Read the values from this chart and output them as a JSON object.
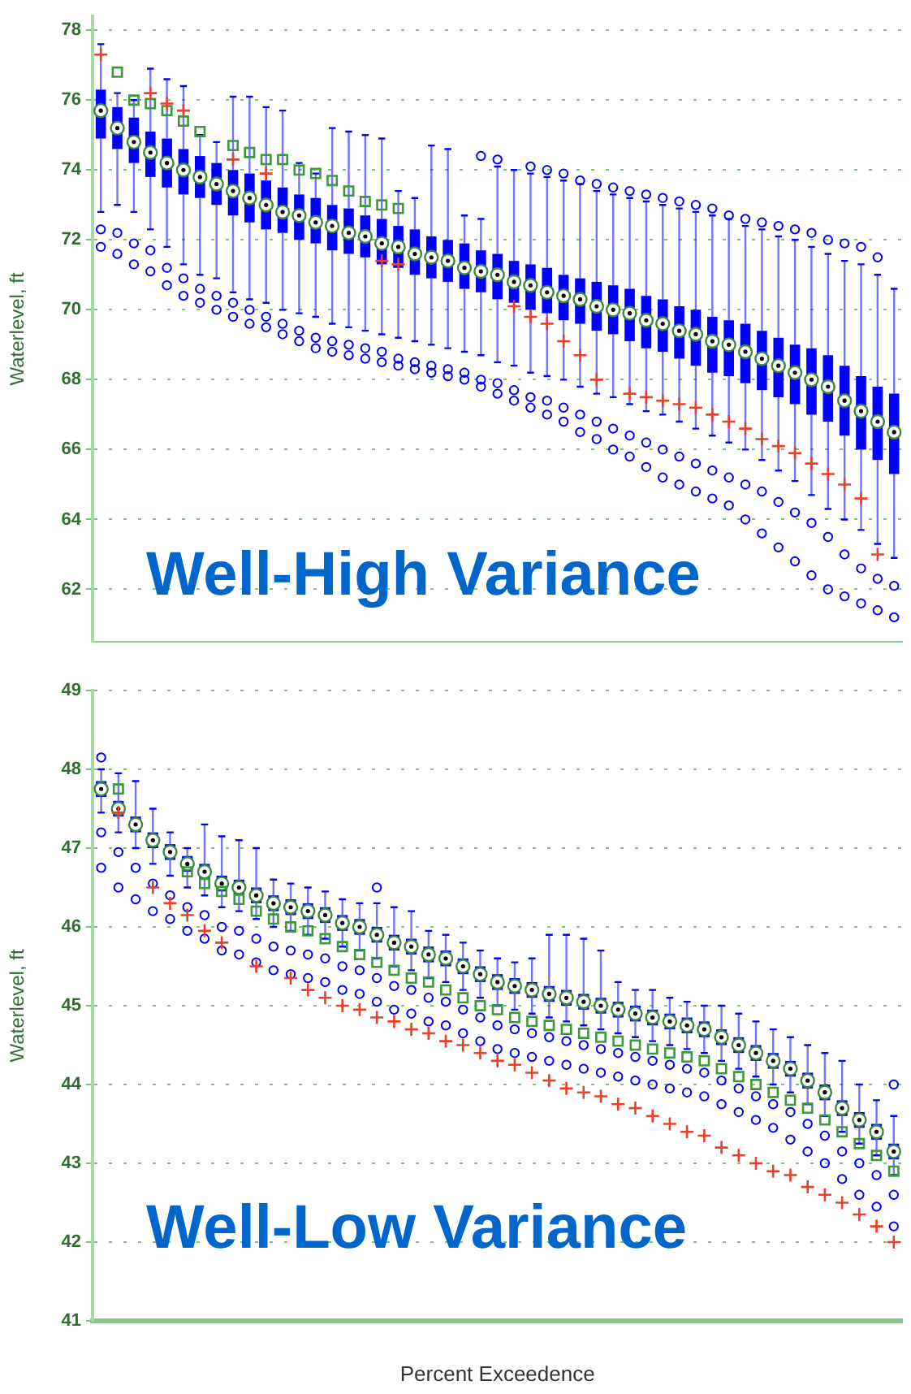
{
  "chart_data": [
    {
      "type": "box",
      "title": "Well-High Variance",
      "ylabel": "Waterlevel, ft",
      "ylim": [
        60.5,
        78.4
      ],
      "yticks": [
        62,
        64,
        66,
        68,
        70,
        72,
        74,
        76,
        78
      ],
      "grid": "y",
      "legend": false,
      "tick_labels": "y",
      "categories": [
        null,
        null,
        null,
        null,
        null,
        null,
        null,
        null,
        null,
        null,
        null,
        null,
        null,
        null,
        null,
        null,
        null,
        null,
        null,
        null,
        null,
        null,
        null,
        null,
        null,
        null,
        null,
        null,
        null,
        null,
        null,
        null,
        null,
        null,
        null,
        null,
        null,
        null,
        null,
        null,
        null,
        null,
        null,
        null,
        null,
        null,
        null,
        null,
        null
      ],
      "series": [
        {
          "type": "box",
          "color": "#0000ff",
          "boxes": [
            {
              "low": 72.8,
              "q1": 74.9,
              "median": 75.7,
              "q3": 76.3,
              "high": 77.6,
              "outliers": [
                72.3,
                71.8
              ]
            },
            {
              "low": 73.0,
              "q1": 74.6,
              "median": 75.2,
              "q3": 75.8,
              "high": 76.2,
              "outliers": [
                72.2,
                71.6
              ]
            },
            {
              "low": 72.8,
              "q1": 74.2,
              "median": 74.8,
              "q3": 75.5,
              "high": 76.0,
              "outliers": [
                71.9,
                71.3
              ]
            },
            {
              "low": 72.3,
              "q1": 73.8,
              "median": 74.5,
              "q3": 75.1,
              "high": 76.9,
              "outliers": [
                71.7,
                71.1
              ]
            },
            {
              "low": 71.8,
              "q1": 73.5,
              "median": 74.2,
              "q3": 74.9,
              "high": 76.6,
              "outliers": [
                71.2,
                70.7
              ]
            },
            {
              "low": 71.3,
              "q1": 73.3,
              "median": 74.0,
              "q3": 74.6,
              "high": 76.4,
              "outliers": [
                70.9,
                70.4
              ]
            },
            {
              "low": 71.0,
              "q1": 73.2,
              "median": 73.8,
              "q3": 74.4,
              "high": 75.0,
              "outliers": [
                70.6,
                70.2
              ]
            },
            {
              "low": 70.9,
              "q1": 73.0,
              "median": 73.6,
              "q3": 74.2,
              "high": 74.8,
              "outliers": [
                70.4,
                70.0
              ]
            },
            {
              "low": 70.5,
              "q1": 72.7,
              "median": 73.4,
              "q3": 74.0,
              "high": 76.1,
              "outliers": [
                70.2,
                69.8
              ]
            },
            {
              "low": 70.3,
              "q1": 72.5,
              "median": 73.2,
              "q3": 73.9,
              "high": 76.1,
              "outliers": [
                70.0,
                69.6
              ]
            },
            {
              "low": 70.2,
              "q1": 72.3,
              "median": 73.0,
              "q3": 73.7,
              "high": 75.8,
              "outliers": [
                69.8,
                69.5
              ]
            },
            {
              "low": 70.0,
              "q1": 72.2,
              "median": 72.8,
              "q3": 73.5,
              "high": 75.7,
              "outliers": [
                69.6,
                69.3
              ]
            },
            {
              "low": 69.9,
              "q1": 72.0,
              "median": 72.7,
              "q3": 73.3,
              "high": 74.2,
              "outliers": [
                69.4,
                69.1
              ]
            },
            {
              "low": 69.8,
              "q1": 71.9,
              "median": 72.5,
              "q3": 73.2,
              "high": 73.9,
              "outliers": [
                69.2,
                68.9
              ]
            },
            {
              "low": 69.6,
              "q1": 71.7,
              "median": 72.4,
              "q3": 73.0,
              "high": 75.2,
              "outliers": [
                69.1,
                68.8
              ]
            },
            {
              "low": 69.5,
              "q1": 71.6,
              "median": 72.2,
              "q3": 72.9,
              "high": 75.1,
              "outliers": [
                69.0,
                68.7
              ]
            },
            {
              "low": 69.4,
              "q1": 71.5,
              "median": 72.1,
              "q3": 72.7,
              "high": 75.0,
              "outliers": [
                68.9,
                68.6
              ]
            },
            {
              "low": 69.3,
              "q1": 71.3,
              "median": 71.9,
              "q3": 72.6,
              "high": 74.9,
              "outliers": [
                68.8,
                68.5
              ]
            },
            {
              "low": 69.2,
              "q1": 71.2,
              "median": 71.8,
              "q3": 72.4,
              "high": 73.4,
              "outliers": [
                68.6,
                68.4
              ]
            },
            {
              "low": 69.1,
              "q1": 71.0,
              "median": 71.6,
              "q3": 72.3,
              "high": 73.2,
              "outliers": [
                68.5,
                68.3
              ]
            },
            {
              "low": 69.0,
              "q1": 70.9,
              "median": 71.5,
              "q3": 72.1,
              "high": 74.7,
              "outliers": [
                68.4,
                68.2
              ]
            },
            {
              "low": 68.9,
              "q1": 70.8,
              "median": 71.4,
              "q3": 72.0,
              "high": 74.6,
              "outliers": [
                68.3,
                68.1
              ]
            },
            {
              "low": 68.8,
              "q1": 70.6,
              "median": 71.2,
              "q3": 71.9,
              "high": 72.7,
              "outliers": [
                68.2,
                68.0
              ]
            },
            {
              "low": 68.7,
              "q1": 70.5,
              "median": 71.1,
              "q3": 71.7,
              "high": 72.6,
              "outliers": [
                74.4,
                68.0,
                67.8
              ]
            },
            {
              "low": 68.5,
              "q1": 70.3,
              "median": 71.0,
              "q3": 71.6,
              "high": 74.1,
              "outliers": [
                74.3,
                67.9,
                67.6
              ]
            },
            {
              "low": 68.4,
              "q1": 70.2,
              "median": 70.8,
              "q3": 71.4,
              "high": 74.0,
              "outliers": [
                67.7,
                67.4
              ]
            },
            {
              "low": 68.2,
              "q1": 70.0,
              "median": 70.7,
              "q3": 71.3,
              "high": 73.9,
              "outliers": [
                74.1,
                67.5,
                67.2
              ]
            },
            {
              "low": 68.1,
              "q1": 69.9,
              "median": 70.5,
              "q3": 71.2,
              "high": 73.8,
              "outliers": [
                74.0,
                67.4,
                67.0
              ]
            },
            {
              "low": 68.0,
              "q1": 69.7,
              "median": 70.4,
              "q3": 71.0,
              "high": 73.7,
              "outliers": [
                73.9,
                67.2,
                66.8
              ]
            },
            {
              "low": 67.8,
              "q1": 69.6,
              "median": 70.3,
              "q3": 70.9,
              "high": 73.6,
              "outliers": [
                73.7,
                67.0,
                66.5
              ]
            },
            {
              "low": 67.6,
              "q1": 69.4,
              "median": 70.1,
              "q3": 70.8,
              "high": 73.4,
              "outliers": [
                73.6,
                66.8,
                66.3
              ]
            },
            {
              "low": 67.5,
              "q1": 69.3,
              "median": 70.0,
              "q3": 70.7,
              "high": 73.3,
              "outliers": [
                73.5,
                66.6,
                66.0
              ]
            },
            {
              "low": 67.3,
              "q1": 69.1,
              "median": 69.9,
              "q3": 70.6,
              "high": 73.2,
              "outliers": [
                73.4,
                66.4,
                65.8
              ]
            },
            {
              "low": 67.1,
              "q1": 68.9,
              "median": 69.7,
              "q3": 70.4,
              "high": 73.1,
              "outliers": [
                73.3,
                66.2,
                65.5
              ]
            },
            {
              "low": 67.0,
              "q1": 68.8,
              "median": 69.6,
              "q3": 70.3,
              "high": 73.0,
              "outliers": [
                73.2,
                66.0,
                65.2
              ]
            },
            {
              "low": 66.8,
              "q1": 68.6,
              "median": 69.4,
              "q3": 70.1,
              "high": 72.9,
              "outliers": [
                73.1,
                65.8,
                65.0
              ]
            },
            {
              "low": 66.6,
              "q1": 68.4,
              "median": 69.3,
              "q3": 70.0,
              "high": 72.8,
              "outliers": [
                73.0,
                65.6,
                64.8
              ]
            },
            {
              "low": 66.4,
              "q1": 68.2,
              "median": 69.1,
              "q3": 69.8,
              "high": 72.7,
              "outliers": [
                72.9,
                65.4,
                64.6
              ]
            },
            {
              "low": 66.2,
              "q1": 68.1,
              "median": 69.0,
              "q3": 69.7,
              "high": 72.6,
              "outliers": [
                72.7,
                65.2,
                64.4
              ]
            },
            {
              "low": 66.0,
              "q1": 67.9,
              "median": 68.8,
              "q3": 69.6,
              "high": 72.4,
              "outliers": [
                72.6,
                65.0,
                64.0
              ]
            },
            {
              "low": 65.7,
              "q1": 67.7,
              "median": 68.6,
              "q3": 69.4,
              "high": 72.3,
              "outliers": [
                72.5,
                64.8,
                63.6
              ]
            },
            {
              "low": 65.4,
              "q1": 67.5,
              "median": 68.4,
              "q3": 69.2,
              "high": 72.1,
              "outliers": [
                72.4,
                64.5,
                63.2
              ]
            },
            {
              "low": 65.1,
              "q1": 67.3,
              "median": 68.2,
              "q3": 69.0,
              "high": 72.0,
              "outliers": [
                72.3,
                64.2,
                62.8
              ]
            },
            {
              "low": 64.7,
              "q1": 67.0,
              "median": 68.0,
              "q3": 68.9,
              "high": 71.8,
              "outliers": [
                72.2,
                63.9,
                62.4
              ]
            },
            {
              "low": 64.3,
              "q1": 66.8,
              "median": 67.8,
              "q3": 68.7,
              "high": 71.6,
              "outliers": [
                72.0,
                63.5,
                62.0
              ]
            },
            {
              "low": 64.0,
              "q1": 66.4,
              "median": 67.4,
              "q3": 68.4,
              "high": 71.4,
              "outliers": [
                71.9,
                63.0,
                61.8
              ]
            },
            {
              "low": 63.7,
              "q1": 66.0,
              "median": 67.1,
              "q3": 68.1,
              "high": 71.3,
              "outliers": [
                71.8,
                62.6,
                61.6
              ]
            },
            {
              "low": 63.3,
              "q1": 65.7,
              "median": 66.8,
              "q3": 67.8,
              "high": 71.0,
              "outliers": [
                71.5,
                62.3,
                61.4
              ]
            },
            {
              "low": 62.9,
              "q1": 65.3,
              "median": 66.5,
              "q3": 67.6,
              "high": 70.6,
              "outliers": [
                62.1,
                61.2
              ]
            }
          ]
        },
        {
          "type": "scatter",
          "color": "#e8402a",
          "marker": "cross",
          "values": [
            77.3,
            null,
            null,
            76.2,
            75.9,
            75.7,
            null,
            null,
            74.3,
            null,
            73.9,
            null,
            null,
            null,
            null,
            null,
            null,
            71.4,
            71.3,
            null,
            null,
            null,
            null,
            null,
            null,
            70.1,
            69.8,
            69.6,
            69.1,
            68.7,
            68.0,
            null,
            67.6,
            67.5,
            67.4,
            67.3,
            67.2,
            67.0,
            66.8,
            66.6,
            66.3,
            66.1,
            65.9,
            65.6,
            65.3,
            65.0,
            64.6,
            63.0,
            null
          ]
        },
        {
          "type": "scatter",
          "color": "#3a9a3a",
          "marker": "square",
          "values": [
            null,
            76.8,
            76.0,
            75.9,
            75.7,
            75.4,
            75.1,
            null,
            74.7,
            74.5,
            74.3,
            74.3,
            74.0,
            73.9,
            73.7,
            73.4,
            73.1,
            73.0,
            72.9,
            null,
            null,
            null,
            null,
            null,
            null,
            null,
            null,
            null,
            null,
            null,
            null,
            null,
            null,
            null,
            null,
            null,
            null,
            null,
            null,
            null,
            null,
            null,
            null,
            null,
            null,
            null,
            null,
            null,
            null
          ]
        }
      ]
    },
    {
      "type": "box",
      "title": "Well-Low Variance",
      "ylabel": "Waterlevel, ft",
      "xlabel": "Percent Exceedence",
      "ylim": [
        41,
        49
      ],
      "yticks": [
        41,
        42,
        43,
        44,
        45,
        46,
        47,
        48,
        49
      ],
      "grid": "y",
      "legend": false,
      "tick_labels": "y",
      "categories": [
        null,
        null,
        null,
        null,
        null,
        null,
        null,
        null,
        null,
        null,
        null,
        null,
        null,
        null,
        null,
        null,
        null,
        null,
        null,
        null,
        null,
        null,
        null,
        null,
        null,
        null,
        null,
        null,
        null,
        null,
        null,
        null,
        null,
        null,
        null,
        null,
        null,
        null,
        null,
        null,
        null,
        null,
        null,
        null,
        null,
        null,
        null
      ],
      "series": [
        {
          "type": "box",
          "color": "#0000ff",
          "boxes": [
            {
              "low": 47.45,
              "q1": 47.65,
              "median": 47.75,
              "q3": 47.85,
              "high": 48.0,
              "outliers": [
                48.15,
                47.2,
                46.75
              ]
            },
            {
              "low": 47.2,
              "q1": 47.4,
              "median": 47.5,
              "q3": 47.6,
              "high": 47.95,
              "outliers": [
                46.95,
                46.5
              ]
            },
            {
              "low": 47.0,
              "q1": 47.2,
              "median": 47.3,
              "q3": 47.4,
              "high": 47.85,
              "outliers": [
                46.75,
                46.35
              ]
            },
            {
              "low": 46.8,
              "q1": 47.0,
              "median": 47.1,
              "q3": 47.2,
              "high": 47.5,
              "outliers": [
                46.55,
                46.2
              ]
            },
            {
              "low": 46.65,
              "q1": 46.85,
              "median": 46.95,
              "q3": 47.05,
              "high": 47.2,
              "outliers": [
                46.4,
                46.1
              ]
            },
            {
              "low": 46.5,
              "q1": 46.7,
              "median": 46.8,
              "q3": 46.9,
              "high": 47.0,
              "outliers": [
                46.25,
                45.95
              ]
            },
            {
              "low": 46.4,
              "q1": 46.6,
              "median": 46.7,
              "q3": 46.8,
              "high": 47.3,
              "outliers": [
                46.15,
                45.85
              ]
            },
            {
              "low": 46.25,
              "q1": 46.45,
              "median": 46.55,
              "q3": 46.65,
              "high": 47.15,
              "outliers": [
                46.0,
                45.7
              ]
            },
            {
              "low": 46.2,
              "q1": 46.4,
              "median": 46.5,
              "q3": 46.6,
              "high": 47.1,
              "outliers": [
                45.95,
                45.65
              ]
            },
            {
              "low": 46.1,
              "q1": 46.3,
              "median": 46.4,
              "q3": 46.5,
              "high": 47.0,
              "outliers": [
                45.85,
                45.55
              ]
            },
            {
              "low": 46.0,
              "q1": 46.2,
              "median": 46.3,
              "q3": 46.4,
              "high": 46.6,
              "outliers": [
                45.75,
                45.45
              ]
            },
            {
              "low": 45.95,
              "q1": 46.15,
              "median": 46.25,
              "q3": 46.35,
              "high": 46.55,
              "outliers": [
                45.7,
                45.4
              ]
            },
            {
              "low": 45.9,
              "q1": 46.1,
              "median": 46.2,
              "q3": 46.3,
              "high": 46.5,
              "outliers": [
                45.65,
                45.35
              ]
            },
            {
              "low": 45.85,
              "q1": 46.05,
              "median": 46.15,
              "q3": 46.25,
              "high": 46.45,
              "outliers": [
                45.6,
                45.3
              ]
            },
            {
              "low": 45.75,
              "q1": 45.95,
              "median": 46.05,
              "q3": 46.15,
              "high": 46.35,
              "outliers": [
                45.5,
                45.2
              ]
            },
            {
              "low": 45.7,
              "q1": 45.9,
              "median": 46.0,
              "q3": 46.1,
              "high": 46.3,
              "outliers": [
                45.45,
                45.15
              ]
            },
            {
              "low": 45.6,
              "q1": 45.8,
              "median": 45.9,
              "q3": 46.0,
              "high": 46.3,
              "outliers": [
                46.5,
                45.35,
                45.05
              ]
            },
            {
              "low": 45.5,
              "q1": 45.7,
              "median": 45.8,
              "q3": 45.9,
              "high": 46.25,
              "outliers": [
                45.25,
                44.95
              ]
            },
            {
              "low": 45.45,
              "q1": 45.65,
              "median": 45.75,
              "q3": 45.85,
              "high": 46.2,
              "outliers": [
                45.2,
                44.9
              ]
            },
            {
              "low": 45.35,
              "q1": 45.55,
              "median": 45.65,
              "q3": 45.75,
              "high": 45.95,
              "outliers": [
                45.1,
                44.8
              ]
            },
            {
              "low": 45.3,
              "q1": 45.5,
              "median": 45.6,
              "q3": 45.7,
              "high": 45.9,
              "outliers": [
                45.05,
                44.75
              ]
            },
            {
              "low": 45.2,
              "q1": 45.4,
              "median": 45.5,
              "q3": 45.6,
              "high": 45.8,
              "outliers": [
                44.95,
                44.65
              ]
            },
            {
              "low": 45.1,
              "q1": 45.3,
              "median": 45.4,
              "q3": 45.5,
              "high": 45.7,
              "outliers": [
                44.85,
                44.55
              ]
            },
            {
              "low": 45.0,
              "q1": 45.2,
              "median": 45.3,
              "q3": 45.4,
              "high": 45.6,
              "outliers": [
                44.75,
                44.45
              ]
            },
            {
              "low": 44.95,
              "q1": 45.15,
              "median": 45.25,
              "q3": 45.35,
              "high": 45.55,
              "outliers": [
                44.7,
                44.4
              ]
            },
            {
              "low": 44.9,
              "q1": 45.1,
              "median": 45.2,
              "q3": 45.3,
              "high": 45.6,
              "outliers": [
                44.65,
                44.35
              ]
            },
            {
              "low": 44.85,
              "q1": 45.05,
              "median": 45.15,
              "q3": 45.25,
              "high": 45.9,
              "outliers": [
                44.6,
                44.3
              ]
            },
            {
              "low": 44.8,
              "q1": 45.0,
              "median": 45.1,
              "q3": 45.2,
              "high": 45.9,
              "outliers": [
                44.55,
                44.25
              ]
            },
            {
              "low": 44.75,
              "q1": 44.95,
              "median": 45.05,
              "q3": 45.15,
              "high": 45.85,
              "outliers": [
                44.5,
                44.2
              ]
            },
            {
              "low": 44.7,
              "q1": 44.9,
              "median": 45.0,
              "q3": 45.1,
              "high": 45.7,
              "outliers": [
                44.45,
                44.15
              ]
            },
            {
              "low": 44.65,
              "q1": 44.85,
              "median": 44.95,
              "q3": 45.05,
              "high": 45.3,
              "outliers": [
                44.4,
                44.1
              ]
            },
            {
              "low": 44.6,
              "q1": 44.8,
              "median": 44.9,
              "q3": 45.0,
              "high": 45.2,
              "outliers": [
                44.35,
                44.05
              ]
            },
            {
              "low": 44.55,
              "q1": 44.75,
              "median": 44.85,
              "q3": 44.95,
              "high": 45.2,
              "outliers": [
                44.3,
                44.0
              ]
            },
            {
              "low": 44.5,
              "q1": 44.7,
              "median": 44.8,
              "q3": 44.9,
              "high": 45.1,
              "outliers": [
                44.25,
                43.95
              ]
            },
            {
              "low": 44.45,
              "q1": 44.65,
              "median": 44.75,
              "q3": 44.85,
              "high": 45.05,
              "outliers": [
                44.2,
                43.9
              ]
            },
            {
              "low": 44.4,
              "q1": 44.6,
              "median": 44.7,
              "q3": 44.8,
              "high": 45.0,
              "outliers": [
                44.15,
                43.85
              ]
            },
            {
              "low": 44.3,
              "q1": 44.5,
              "median": 44.6,
              "q3": 44.7,
              "high": 45.0,
              "outliers": [
                44.05,
                43.75
              ]
            },
            {
              "low": 44.2,
              "q1": 44.4,
              "median": 44.5,
              "q3": 44.6,
              "high": 44.9,
              "outliers": [
                43.95,
                43.65
              ]
            },
            {
              "low": 44.1,
              "q1": 44.3,
              "median": 44.4,
              "q3": 44.5,
              "high": 44.8,
              "outliers": [
                43.85,
                43.55
              ]
            },
            {
              "low": 44.0,
              "q1": 44.2,
              "median": 44.3,
              "q3": 44.4,
              "high": 44.7,
              "outliers": [
                43.75,
                43.45
              ]
            },
            {
              "low": 43.9,
              "q1": 44.1,
              "median": 44.2,
              "q3": 44.3,
              "high": 44.6,
              "outliers": [
                43.65,
                43.3
              ]
            },
            {
              "low": 43.75,
              "q1": 43.95,
              "median": 44.05,
              "q3": 44.15,
              "high": 44.5,
              "outliers": [
                43.5,
                43.15
              ]
            },
            {
              "low": 43.6,
              "q1": 43.8,
              "median": 43.9,
              "q3": 44.0,
              "high": 44.4,
              "outliers": [
                43.35,
                43.0
              ]
            },
            {
              "low": 43.4,
              "q1": 43.6,
              "median": 43.7,
              "q3": 43.8,
              "high": 44.3,
              "outliers": [
                43.15,
                42.8
              ]
            },
            {
              "low": 43.25,
              "q1": 43.45,
              "median": 43.55,
              "q3": 43.65,
              "high": 44.0,
              "outliers": [
                43.0,
                42.6
              ]
            },
            {
              "low": 43.1,
              "q1": 43.3,
              "median": 43.4,
              "q3": 43.5,
              "high": 43.8,
              "outliers": [
                42.85,
                42.45
              ]
            },
            {
              "low": 42.85,
              "q1": 43.05,
              "median": 43.15,
              "q3": 43.25,
              "high": 43.6,
              "outliers": [
                44.0,
                42.6,
                42.2
              ]
            }
          ]
        },
        {
          "type": "scatter",
          "color": "#e8402a",
          "marker": "cross",
          "values": [
            null,
            47.45,
            null,
            46.5,
            46.3,
            46.15,
            45.95,
            45.8,
            null,
            45.5,
            null,
            45.35,
            45.2,
            45.1,
            45.0,
            44.95,
            44.85,
            44.8,
            44.7,
            44.65,
            44.55,
            44.5,
            44.4,
            44.3,
            44.25,
            44.15,
            44.05,
            43.95,
            43.9,
            43.85,
            43.75,
            43.7,
            43.6,
            43.5,
            43.4,
            43.35,
            43.2,
            43.1,
            43.0,
            42.9,
            42.85,
            42.7,
            42.6,
            42.5,
            42.35,
            42.2,
            42.0
          ]
        },
        {
          "type": "scatter",
          "color": "#3a9a3a",
          "marker": "square",
          "values": [
            null,
            47.75,
            null,
            null,
            null,
            46.7,
            46.55,
            46.45,
            46.35,
            46.2,
            46.1,
            46.0,
            45.95,
            45.85,
            45.75,
            45.65,
            45.55,
            45.45,
            45.35,
            45.3,
            45.2,
            45.1,
            45.0,
            44.95,
            44.85,
            44.8,
            44.75,
            44.7,
            44.65,
            44.6,
            44.55,
            44.5,
            44.45,
            44.4,
            44.35,
            44.3,
            44.2,
            44.1,
            44.0,
            43.9,
            43.8,
            43.7,
            43.55,
            43.4,
            43.25,
            43.1,
            42.9
          ]
        }
      ]
    }
  ]
}
